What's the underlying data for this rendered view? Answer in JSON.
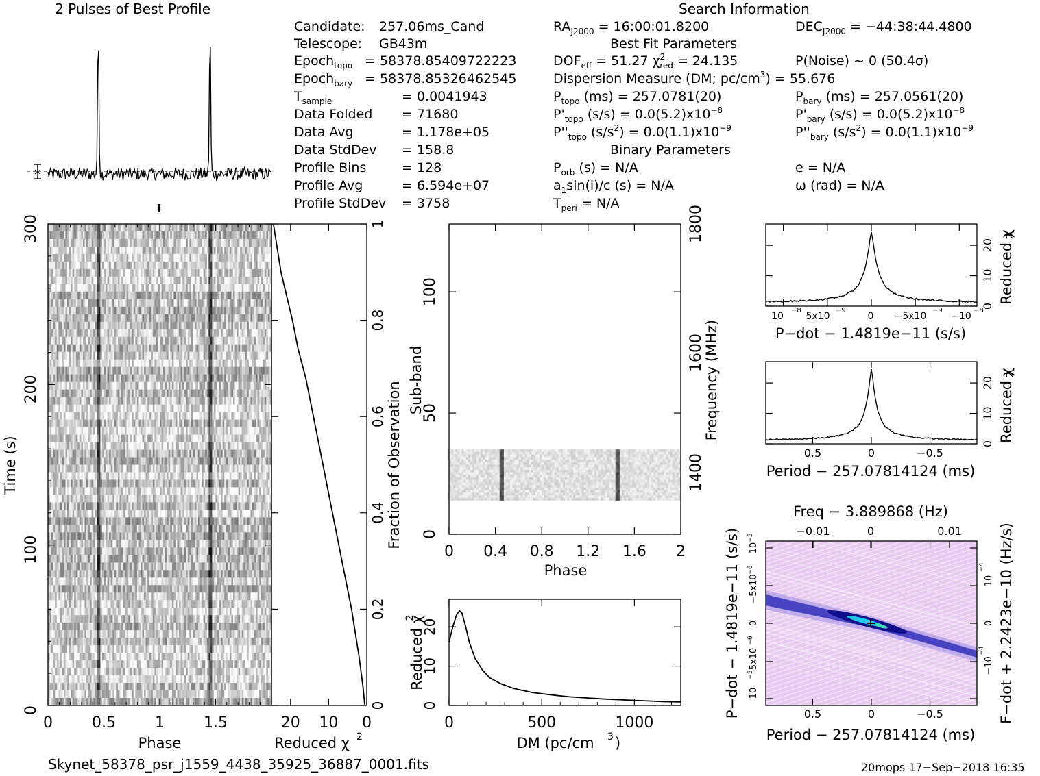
{
  "header": {
    "profile_title": "2 Pulses of Best Profile",
    "search_title": "Search Information"
  },
  "info_left": [
    {
      "label": "Candidate:",
      "value": "257.06ms_Cand"
    },
    {
      "label": "Telescope:",
      "value": "GB43m"
    },
    {
      "label": "Epoch",
      "sub": "topo",
      "value": "= 58378.85409722223"
    },
    {
      "label": "Epoch",
      "sub": "bary",
      "value": "= 58378.85326462545"
    },
    {
      "label": "T",
      "sub": "sample",
      "value": "=   0.0041943"
    },
    {
      "label": "Data Folded",
      "value": "=   71680"
    },
    {
      "label": "Data Avg",
      "value": "=   1.178e+05"
    },
    {
      "label": "Data StdDev",
      "value": "=   158.8"
    },
    {
      "label": "Profile Bins",
      "value": "=   128"
    },
    {
      "label": "Profile Avg",
      "value": "=   6.594e+07"
    },
    {
      "label": "Profile StdDev",
      "value": "=   3758"
    }
  ],
  "info_right": {
    "ra": "= 16:00:01.8200",
    "dec": "= −44:38:44.4800",
    "best_fit_title": "Best Fit Parameters",
    "dof": "= 51.27",
    "chi2red": "= 24.135",
    "pnoise": "P(Noise) ~ 0    (50.4σ)",
    "dm_line": "Dispersion Measure (DM; pc/cm",
    "dm_value": ") = 55.676",
    "ptopo": "(ms) =  257.0781(20)",
    "pbary": "(ms) =  257.0561(20)",
    "pdtopo": "(s/s) = 0.0(5.2)x10",
    "pdtopo_exp": "−8",
    "pdbary": "(s/s) = 0.0(5.2)x10",
    "pdbary_exp": "−8",
    "pddtopo": "(s/s",
    "pddtopo_tail": ") = 0.0(1.1)x10",
    "pddtopo_exp": "−9",
    "pddbary": "(s/s",
    "pddbary_tail": ") = 0.0(1.1)x10",
    "pddbary_exp": "−9",
    "binary_title": "Binary Parameters",
    "porb": "(s) = N/A",
    "e": "e = N/A",
    "a1": "sin(i)/c (s) = N/A",
    "omega": "ω (rad) = N/A",
    "tperi": "= N/A"
  },
  "footer": {
    "filename": "Skynet_58378_psr_j1559_4438_35925_36887_0001.fits",
    "stamp": "20mops 17−Sep−2018 16:35"
  },
  "chart_data": [
    {
      "type": "line",
      "title": "2 Pulses of Best Profile",
      "xlabel": "",
      "ylabel": "",
      "x_range": [
        0,
        2
      ],
      "peaks": [
        0.45,
        1.45
      ],
      "note_points": {
        "x": [
          0.0,
          0.2,
          0.4,
          0.45,
          0.5,
          0.6,
          0.8,
          1.0,
          1.2,
          1.4,
          1.45,
          1.5,
          1.6,
          1.8,
          2.0
        ],
        "y": [
          0.02,
          0.03,
          0.05,
          1.0,
          0.05,
          0.03,
          0.02,
          0.04,
          0.03,
          0.05,
          1.0,
          0.05,
          0.03,
          0.02,
          0.03
        ]
      }
    },
    {
      "type": "heatmap",
      "title": "",
      "xlabel": "Phase",
      "ylabel": "Time (s)",
      "xlim": [
        0,
        2
      ],
      "ylim": [
        0,
        300
      ],
      "x_ticks": [
        "0",
        "0.5",
        "1",
        "1.5"
      ],
      "y_ticks": [
        "0",
        "100",
        "200",
        "300"
      ],
      "pulse_phases": [
        0.45,
        1.45
      ]
    },
    {
      "type": "line",
      "title": "",
      "xlabel": "Reduced χ²",
      "ylabel": "Fraction of Observation",
      "xlim": [
        25,
        0
      ],
      "ylim": [
        0,
        1
      ],
      "x_ticks": [
        "20",
        "10",
        "0"
      ],
      "y_ticks": [
        "0",
        "0.2",
        "0.4",
        "0.6",
        "0.8",
        "1"
      ],
      "x": [
        24.5,
        23.5,
        22.5,
        21.0,
        19.5,
        18.0,
        16.0,
        14.0,
        12.0,
        10.0,
        8.0,
        6.0,
        4.0,
        2.0,
        1.0,
        0.5
      ],
      "y": [
        1.0,
        0.95,
        0.9,
        0.85,
        0.8,
        0.74,
        0.68,
        0.6,
        0.52,
        0.44,
        0.36,
        0.28,
        0.2,
        0.1,
        0.04,
        0.0
      ]
    },
    {
      "type": "heatmap",
      "title": "",
      "xlabel": "Phase",
      "ylabel": "Sub-band",
      "y2label": "Frequency (MHz)",
      "xlim": [
        0,
        2
      ],
      "ylim": [
        0,
        128
      ],
      "x_ticks": [
        "0",
        "0.4",
        "0.8",
        "1.2",
        "1.6",
        "2"
      ],
      "y_ticks": [
        "0",
        "50",
        "100"
      ],
      "y2_ticks": [
        "1400",
        "1600",
        "1800"
      ],
      "band_range": [
        14,
        35
      ],
      "pulse_phases": [
        0.45,
        1.45
      ]
    },
    {
      "type": "line",
      "title": "",
      "xlabel": "DM (pc/cm³)",
      "ylabel": "Reduced χ²",
      "xlim": [
        0,
        1250
      ],
      "ylim": [
        0,
        27
      ],
      "x_ticks": [
        "0",
        "500",
        "1000"
      ],
      "y_ticks": [
        "0",
        "10",
        "20"
      ],
      "x": [
        0,
        20,
        40,
        56,
        70,
        90,
        110,
        140,
        180,
        220,
        280,
        350,
        450,
        550,
        650,
        750,
        850,
        950,
        1050,
        1150,
        1250
      ],
      "y": [
        16,
        20,
        23,
        24.1,
        23.5,
        20,
        16,
        12,
        9,
        7,
        5.5,
        4.3,
        3.3,
        2.7,
        2.2,
        1.9,
        1.6,
        1.4,
        1.2,
        1.0,
        0.9
      ]
    },
    {
      "type": "line",
      "title": "",
      "xlabel": "P−dot − 1.4819e−11 (s/s)",
      "ylabel": "Reduced χ²",
      "xlim": [
        1.2e-08,
        -1.2e-08
      ],
      "ylim": [
        0,
        27
      ],
      "x_ticks": [
        "10",
        "5x10",
        "0",
        "−5x10",
        "−10"
      ],
      "y_ticks": [
        "0",
        "10",
        "20"
      ],
      "x": [
        1.2e-08,
        8e-09,
        4e-09,
        2e-09,
        1e-09,
        4e-10,
        0,
        -4e-10,
        -1e-09,
        -2e-09,
        -4e-09,
        -8e-09,
        -1.2e-08
      ],
      "y": [
        1.0,
        1.3,
        1.8,
        3.0,
        5.0,
        12.0,
        24.5,
        12.0,
        5.0,
        3.0,
        1.8,
        1.3,
        1.0
      ]
    },
    {
      "type": "line",
      "title": "",
      "xlabel": "Period − 257.07814124 (ms)",
      "ylabel": "Reduced χ²",
      "xlim": [
        0.9,
        -0.9
      ],
      "ylim": [
        0,
        27
      ],
      "x_ticks": [
        "0.5",
        "0",
        "−0.5"
      ],
      "y_ticks": [
        "0",
        "10",
        "20"
      ],
      "x": [
        0.9,
        0.7,
        0.5,
        0.3,
        0.2,
        0.1,
        0.05,
        0,
        -0.05,
        -0.1,
        -0.2,
        -0.3,
        -0.5,
        -0.7,
        -0.9
      ],
      "y": [
        1.0,
        1.2,
        1.6,
        2.2,
        3.5,
        7.0,
        14.0,
        24.5,
        14.0,
        7.0,
        3.5,
        2.2,
        1.6,
        1.2,
        1.0
      ]
    },
    {
      "type": "heatmap",
      "title": "Freq − 3.889868 (Hz)",
      "xlabel": "Period − 257.07814124 (ms)",
      "ylabel": "P−dot − 1.4819e−11 (s/s)",
      "y2label": "F−dot + 2.2423e−10 (Hz/s)",
      "x_ticks": [
        "0.5",
        "0",
        "−0.5"
      ],
      "x2_ticks": [
        "−0.01",
        "0",
        "0.01"
      ],
      "y_ticks": [
        "10",
        "5x10",
        "0",
        "−5x10",
        "10"
      ],
      "y2_ticks": [
        "−10",
        "0",
        "10"
      ]
    }
  ]
}
